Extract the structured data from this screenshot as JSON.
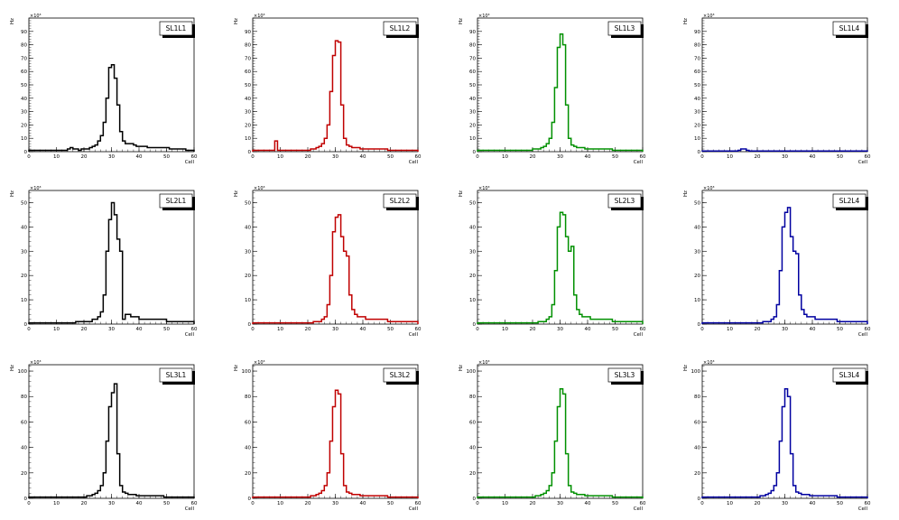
{
  "chart_data": [
    {
      "type": "histogram",
      "title": "SL1L1",
      "xlabel": "Cell",
      "ylabel": "Hz",
      "multiplier": "×10³",
      "xlim": [
        0,
        60
      ],
      "ylim": [
        0,
        100
      ],
      "xticks": [
        "0",
        "10",
        "20",
        "30",
        "40",
        "50",
        "60"
      ],
      "yticks": [
        "0",
        "10",
        "20",
        "30",
        "40",
        "50",
        "60",
        "70",
        "80",
        "90"
      ],
      "color": "#000000",
      "values": [
        1,
        1,
        1,
        1,
        1,
        1,
        1,
        1,
        1,
        1,
        1,
        1,
        1,
        1,
        2,
        3,
        2,
        2,
        1,
        2,
        2,
        2,
        3,
        4,
        5,
        8,
        12,
        22,
        40,
        63,
        65,
        55,
        35,
        15,
        8,
        6,
        6,
        6,
        5,
        4,
        4,
        4,
        4,
        3,
        3,
        3,
        3,
        3,
        3,
        3,
        3,
        2,
        2,
        2,
        2,
        2,
        2,
        1,
        1,
        1
      ]
    },
    {
      "type": "histogram",
      "title": "SL1L2",
      "xlabel": "Cell",
      "ylabel": "Hz",
      "multiplier": "×10³",
      "xlim": [
        0,
        60
      ],
      "ylim": [
        0,
        100
      ],
      "xticks": [
        "0",
        "10",
        "20",
        "30",
        "40",
        "50",
        "60"
      ],
      "yticks": [
        "0",
        "10",
        "20",
        "30",
        "40",
        "50",
        "60",
        "70",
        "80",
        "90"
      ],
      "color": "#c00000",
      "values": [
        1,
        1,
        1,
        1,
        1,
        1,
        1,
        1,
        8,
        1,
        1,
        1,
        1,
        1,
        1,
        1,
        1,
        1,
        1,
        1,
        1,
        2,
        2,
        3,
        4,
        6,
        10,
        20,
        45,
        72,
        83,
        82,
        35,
        10,
        5,
        4,
        3,
        3,
        3,
        2,
        2,
        2,
        2,
        2,
        2,
        2,
        2,
        2,
        2,
        1,
        1,
        1,
        1,
        1,
        1,
        1,
        1,
        1,
        1,
        1
      ]
    },
    {
      "type": "histogram",
      "title": "SL1L3",
      "xlabel": "Cell",
      "ylabel": "Hz",
      "multiplier": "×10³",
      "xlim": [
        0,
        60
      ],
      "ylim": [
        0,
        100
      ],
      "xticks": [
        "0",
        "10",
        "20",
        "30",
        "40",
        "50",
        "60"
      ],
      "yticks": [
        "0",
        "10",
        "20",
        "30",
        "40",
        "50",
        "60",
        "70",
        "80",
        "90"
      ],
      "color": "#009000",
      "values": [
        1,
        1,
        1,
        1,
        1,
        1,
        1,
        1,
        1,
        1,
        1,
        1,
        1,
        1,
        1,
        1,
        1,
        1,
        1,
        1,
        2,
        2,
        2,
        3,
        4,
        6,
        10,
        22,
        48,
        78,
        88,
        80,
        35,
        10,
        5,
        4,
        3,
        3,
        3,
        2,
        2,
        2,
        2,
        2,
        2,
        2,
        2,
        2,
        2,
        1,
        1,
        1,
        1,
        1,
        1,
        1,
        1,
        1,
        1,
        1
      ]
    },
    {
      "type": "histogram",
      "title": "SL1L4",
      "xlabel": "Cell",
      "ylabel": "Hz",
      "multiplier": "×10³",
      "xlim": [
        0,
        60
      ],
      "ylim": [
        0,
        100
      ],
      "xticks": [
        "0",
        "10",
        "20",
        "30",
        "40",
        "50",
        "60"
      ],
      "yticks": [
        "0",
        "10",
        "20",
        "30",
        "40",
        "50",
        "60",
        "70",
        "80",
        "90"
      ],
      "color": "#0000a0",
      "values": [
        0.5,
        0.5,
        0.5,
        0.5,
        0.5,
        0.5,
        0.5,
        0.5,
        0.5,
        0.5,
        0.5,
        0.5,
        0.5,
        1,
        2,
        2,
        1,
        0.5,
        0.5,
        0.5,
        0.5,
        0.5,
        0.5,
        0.5,
        0.5,
        0.5,
        0.5,
        0.5,
        0.5,
        0.5,
        0.5,
        0.5,
        0.5,
        0.5,
        0.5,
        0.5,
        0.5,
        0.5,
        0.5,
        0.5,
        0.5,
        0.5,
        0.5,
        0.5,
        0.5,
        0.5,
        0.5,
        0.5,
        0.5,
        0.5,
        0.5,
        0.5,
        0.5,
        0.5,
        0.5,
        0.5,
        0.5,
        0.5,
        0.5,
        0.5
      ]
    },
    {
      "type": "histogram",
      "title": "SL2L1",
      "xlabel": "Cell",
      "ylabel": "Hz",
      "multiplier": "×10³",
      "xlim": [
        0,
        60
      ],
      "ylim": [
        0,
        55
      ],
      "xticks": [
        "0",
        "10",
        "20",
        "30",
        "40",
        "50",
        "60"
      ],
      "yticks": [
        "0",
        "10",
        "20",
        "30",
        "40",
        "50"
      ],
      "color": "#000000",
      "values": [
        0.5,
        0.5,
        0.5,
        0.5,
        0.5,
        0.5,
        0.5,
        0.5,
        0.5,
        0.5,
        0.5,
        0.5,
        0.5,
        0.5,
        0.5,
        0.5,
        0.5,
        1,
        1,
        1,
        1,
        1,
        1,
        2,
        2,
        3,
        5,
        12,
        30,
        43,
        50,
        45,
        35,
        30,
        2,
        4,
        4,
        3,
        3,
        3,
        2,
        2,
        2,
        2,
        2,
        2,
        2,
        2,
        2,
        2,
        1,
        1,
        1,
        1,
        1,
        1,
        1,
        1,
        1,
        1
      ]
    },
    {
      "type": "histogram",
      "title": "SL2L2",
      "xlabel": "Cell",
      "ylabel": "Hz",
      "multiplier": "×10³",
      "xlim": [
        0,
        60
      ],
      "ylim": [
        0,
        55
      ],
      "xticks": [
        "0",
        "10",
        "20",
        "30",
        "40",
        "50",
        "60"
      ],
      "yticks": [
        "0",
        "10",
        "20",
        "30",
        "40",
        "50"
      ],
      "color": "#c00000",
      "values": [
        0.5,
        0.5,
        0.5,
        0.5,
        0.5,
        0.5,
        0.5,
        0.5,
        0.5,
        0.5,
        0.5,
        0.5,
        0.5,
        0.5,
        0.5,
        0.5,
        0.5,
        0.5,
        0.5,
        0.5,
        0.5,
        0.5,
        1,
        1,
        1,
        2,
        3,
        8,
        20,
        38,
        44,
        45,
        36,
        30,
        28,
        12,
        6,
        4,
        3,
        3,
        3,
        2,
        2,
        2,
        2,
        2,
        2,
        2,
        2,
        1,
        1,
        1,
        1,
        1,
        1,
        1,
        1,
        1,
        1,
        1
      ]
    },
    {
      "type": "histogram",
      "title": "SL2L3",
      "xlabel": "Cell",
      "ylabel": "Hz",
      "multiplier": "×10³",
      "xlim": [
        0,
        60
      ],
      "ylim": [
        0,
        55
      ],
      "xticks": [
        "0",
        "10",
        "20",
        "30",
        "40",
        "50",
        "60"
      ],
      "yticks": [
        "0",
        "10",
        "20",
        "30",
        "40",
        "50"
      ],
      "color": "#009000",
      "values": [
        0.5,
        0.5,
        0.5,
        0.5,
        0.5,
        0.5,
        0.5,
        0.5,
        0.5,
        0.5,
        0.5,
        0.5,
        0.5,
        0.5,
        0.5,
        0.5,
        0.5,
        0.5,
        0.5,
        0.5,
        0.5,
        0.5,
        1,
        1,
        1,
        2,
        3,
        8,
        22,
        40,
        46,
        45,
        36,
        30,
        32,
        12,
        6,
        4,
        3,
        3,
        3,
        2,
        2,
        2,
        2,
        2,
        2,
        2,
        2,
        1,
        1,
        1,
        1,
        1,
        1,
        1,
        1,
        1,
        1,
        1
      ]
    },
    {
      "type": "histogram",
      "title": "SL2L4",
      "xlabel": "Cell",
      "ylabel": "Hz",
      "multiplier": "×10³",
      "xlim": [
        0,
        60
      ],
      "ylim": [
        0,
        55
      ],
      "xticks": [
        "0",
        "10",
        "20",
        "30",
        "40",
        "50",
        "60"
      ],
      "yticks": [
        "0",
        "10",
        "20",
        "30",
        "40",
        "50"
      ],
      "color": "#0000a0",
      "values": [
        0.5,
        0.5,
        0.5,
        0.5,
        0.5,
        0.5,
        0.5,
        0.5,
        0.5,
        0.5,
        0.5,
        0.5,
        0.5,
        0.5,
        0.5,
        0.5,
        0.5,
        0.5,
        0.5,
        0.5,
        0.5,
        0.5,
        1,
        1,
        1,
        2,
        3,
        8,
        22,
        40,
        46,
        48,
        36,
        30,
        29,
        12,
        6,
        4,
        3,
        3,
        3,
        2,
        2,
        2,
        2,
        2,
        2,
        2,
        2,
        1,
        1,
        1,
        1,
        1,
        1,
        1,
        1,
        1,
        1,
        1
      ]
    },
    {
      "type": "histogram",
      "title": "SL3L1",
      "xlabel": "Cell",
      "ylabel": "Hz",
      "multiplier": "×10³",
      "xlim": [
        0,
        60
      ],
      "ylim": [
        0,
        105
      ],
      "xticks": [
        "0",
        "10",
        "20",
        "30",
        "40",
        "50",
        "60"
      ],
      "yticks": [
        "0",
        "20",
        "40",
        "60",
        "80",
        "100"
      ],
      "color": "#000000",
      "values": [
        1,
        1,
        1,
        1,
        1,
        1,
        1,
        1,
        1,
        1,
        1,
        1,
        1,
        1,
        1,
        1,
        1,
        1,
        1,
        1,
        1,
        2,
        2,
        3,
        4,
        6,
        10,
        20,
        45,
        72,
        83,
        90,
        35,
        10,
        5,
        4,
        3,
        3,
        3,
        2,
        2,
        2,
        2,
        2,
        2,
        2,
        2,
        2,
        2,
        1,
        1,
        1,
        1,
        1,
        1,
        1,
        1,
        1,
        1,
        1
      ]
    },
    {
      "type": "histogram",
      "title": "SL3L2",
      "xlabel": "Cell",
      "ylabel": "Hz",
      "multiplier": "×10³",
      "xlim": [
        0,
        60
      ],
      "ylim": [
        0,
        105
      ],
      "xticks": [
        "0",
        "10",
        "20",
        "30",
        "40",
        "50",
        "60"
      ],
      "yticks": [
        "0",
        "20",
        "40",
        "60",
        "80",
        "100"
      ],
      "color": "#c00000",
      "values": [
        1,
        1,
        1,
        1,
        1,
        1,
        1,
        1,
        1,
        1,
        1,
        1,
        1,
        1,
        1,
        1,
        1,
        1,
        1,
        1,
        1,
        2,
        2,
        3,
        4,
        6,
        10,
        20,
        45,
        72,
        85,
        82,
        35,
        10,
        5,
        4,
        3,
        3,
        3,
        2,
        2,
        2,
        2,
        2,
        2,
        2,
        2,
        2,
        2,
        1,
        1,
        1,
        1,
        1,
        1,
        1,
        1,
        1,
        1,
        1
      ]
    },
    {
      "type": "histogram",
      "title": "SL3L3",
      "xlabel": "Cell",
      "ylabel": "Hz",
      "multiplier": "×10³",
      "xlim": [
        0,
        60
      ],
      "ylim": [
        0,
        105
      ],
      "xticks": [
        "0",
        "10",
        "20",
        "30",
        "40",
        "50",
        "60"
      ],
      "yticks": [
        "0",
        "20",
        "40",
        "60",
        "80",
        "100"
      ],
      "color": "#009000",
      "values": [
        1,
        1,
        1,
        1,
        1,
        1,
        1,
        1,
        1,
        1,
        1,
        1,
        1,
        1,
        1,
        1,
        1,
        1,
        1,
        1,
        1,
        2,
        2,
        3,
        4,
        6,
        10,
        20,
        45,
        72,
        86,
        82,
        35,
        10,
        5,
        4,
        3,
        3,
        3,
        2,
        2,
        2,
        2,
        2,
        2,
        2,
        2,
        2,
        2,
        1,
        1,
        1,
        1,
        1,
        1,
        1,
        1,
        1,
        1,
        1
      ]
    },
    {
      "type": "histogram",
      "title": "SL3L4",
      "xlabel": "Cell",
      "ylabel": "Hz",
      "multiplier": "×10³",
      "xlim": [
        0,
        60
      ],
      "ylim": [
        0,
        105
      ],
      "xticks": [
        "0",
        "10",
        "20",
        "30",
        "40",
        "50",
        "60"
      ],
      "yticks": [
        "0",
        "20",
        "40",
        "60",
        "80",
        "100"
      ],
      "color": "#0000a0",
      "values": [
        1,
        1,
        1,
        1,
        1,
        1,
        1,
        1,
        1,
        1,
        1,
        1,
        1,
        1,
        1,
        1,
        1,
        1,
        1,
        1,
        1,
        2,
        2,
        3,
        4,
        6,
        10,
        20,
        45,
        72,
        86,
        80,
        35,
        10,
        5,
        4,
        3,
        3,
        3,
        2,
        2,
        2,
        2,
        2,
        2,
        2,
        2,
        2,
        2,
        1,
        1,
        1,
        1,
        1,
        1,
        1,
        1,
        1,
        1,
        1
      ]
    }
  ]
}
